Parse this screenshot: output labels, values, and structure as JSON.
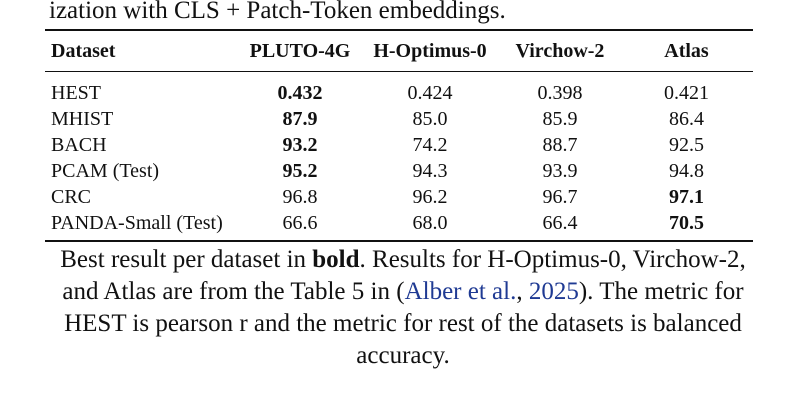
{
  "top_text": "ization with CLS + Patch-Token embeddings.",
  "table": {
    "headers": [
      "Dataset",
      "PLUTO-4G",
      "H-Optimus-0",
      "Virchow-2",
      "Atlas"
    ],
    "rows": [
      {
        "dataset": "HEST",
        "values": [
          "0.432",
          "0.424",
          "0.398",
          "0.421"
        ],
        "best": [
          true,
          false,
          false,
          false
        ]
      },
      {
        "dataset": "MHIST",
        "values": [
          "87.9",
          "85.0",
          "85.9",
          "86.4"
        ],
        "best": [
          true,
          false,
          false,
          false
        ]
      },
      {
        "dataset": "BACH",
        "values": [
          "93.2",
          "74.2",
          "88.7",
          "92.5"
        ],
        "best": [
          true,
          false,
          false,
          false
        ]
      },
      {
        "dataset": "PCAM (Test)",
        "values": [
          "95.2",
          "94.3",
          "93.9",
          "94.8"
        ],
        "best": [
          true,
          false,
          false,
          false
        ]
      },
      {
        "dataset": "CRC",
        "values": [
          "96.8",
          "96.2",
          "96.7",
          "97.1"
        ],
        "best": [
          false,
          false,
          false,
          true
        ]
      },
      {
        "dataset": "PANDA-Small (Test)",
        "values": [
          "66.6",
          "68.0",
          "66.4",
          "70.5"
        ],
        "best": [
          false,
          false,
          false,
          true
        ]
      }
    ]
  },
  "caption": {
    "part1": "Best result per dataset in ",
    "bold": "bold",
    "part2": ". Results for H-Optimus-0, Virchow-2, and Atlas are from the Table 5 in (",
    "cite_author": "Alber et al.",
    "cite_sep": ", ",
    "cite_year": "2025",
    "part3": "). The metric for HEST is pearson r and the metric for rest of the datasets is balanced accuracy."
  }
}
